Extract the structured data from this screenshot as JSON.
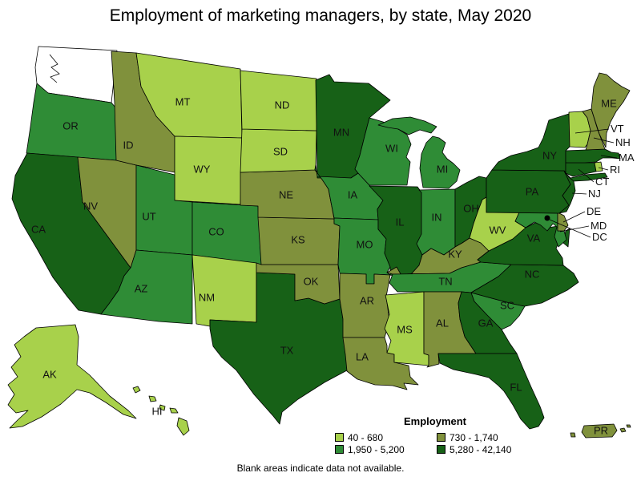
{
  "title": "Employment of marketing managers, by state, May 2020",
  "note": "Blank areas indicate data not available.",
  "legend": {
    "title": "Employment",
    "items": [
      {
        "label": "40 - 680",
        "color": "#a8d14b"
      },
      {
        "label": "730 - 1,740",
        "color": "#80913c"
      },
      {
        "label": "1,950 - 5,200",
        "color": "#2f8c36"
      },
      {
        "label": "5,280 - 42,140",
        "color": "#176117"
      }
    ]
  },
  "colors": {
    "no_data": "#ffffff",
    "border": "#000000",
    "dc_marker": "#000000",
    "background": "#ffffff"
  },
  "chart_data": {
    "type": "choropleth",
    "title": "Employment of marketing managers, by state, May 2020",
    "legend_title": "Employment",
    "bins": [
      "40 - 680",
      "730 - 1,740",
      "1,950 - 5,200",
      "5,280 - 42,140"
    ],
    "no_data_note": "Blank areas indicate data not available.",
    "states": [
      {
        "code": "WA",
        "bin": null,
        "no_data": true
      },
      {
        "code": "OR",
        "bin": 2
      },
      {
        "code": "CA",
        "bin": 3
      },
      {
        "code": "NV",
        "bin": 1
      },
      {
        "code": "ID",
        "bin": 1
      },
      {
        "code": "MT",
        "bin": 0
      },
      {
        "code": "WY",
        "bin": 0
      },
      {
        "code": "UT",
        "bin": 2
      },
      {
        "code": "CO",
        "bin": 2
      },
      {
        "code": "AZ",
        "bin": 2
      },
      {
        "code": "NM",
        "bin": 0
      },
      {
        "code": "TX",
        "bin": 3
      },
      {
        "code": "OK",
        "bin": 1
      },
      {
        "code": "KS",
        "bin": 1
      },
      {
        "code": "NE",
        "bin": 1
      },
      {
        "code": "SD",
        "bin": 0
      },
      {
        "code": "ND",
        "bin": 0
      },
      {
        "code": "MN",
        "bin": 3
      },
      {
        "code": "IA",
        "bin": 2
      },
      {
        "code": "MO",
        "bin": 2
      },
      {
        "code": "AR",
        "bin": 1
      },
      {
        "code": "LA",
        "bin": 1
      },
      {
        "code": "WI",
        "bin": 2
      },
      {
        "code": "IL",
        "bin": 3
      },
      {
        "code": "MI",
        "bin": 2
      },
      {
        "code": "IN",
        "bin": 2
      },
      {
        "code": "OH",
        "bin": 3
      },
      {
        "code": "KY",
        "bin": 1
      },
      {
        "code": "TN",
        "bin": 2
      },
      {
        "code": "MS",
        "bin": 0
      },
      {
        "code": "AL",
        "bin": 1
      },
      {
        "code": "GA",
        "bin": 3
      },
      {
        "code": "FL",
        "bin": 3
      },
      {
        "code": "SC",
        "bin": 2
      },
      {
        "code": "NC",
        "bin": 3
      },
      {
        "code": "VA",
        "bin": 3
      },
      {
        "code": "WV",
        "bin": 0
      },
      {
        "code": "MD",
        "bin": 2
      },
      {
        "code": "DE",
        "bin": 1
      },
      {
        "code": "PA",
        "bin": 3
      },
      {
        "code": "NY",
        "bin": 3
      },
      {
        "code": "NJ",
        "bin": 3
      },
      {
        "code": "CT",
        "bin": 3
      },
      {
        "code": "RI",
        "bin": 0
      },
      {
        "code": "MA",
        "bin": 3
      },
      {
        "code": "VT",
        "bin": 0
      },
      {
        "code": "NH",
        "bin": 1
      },
      {
        "code": "ME",
        "bin": 1
      },
      {
        "code": "AK",
        "bin": 0
      },
      {
        "code": "HI",
        "bin": 0
      },
      {
        "code": "PR",
        "bin": 1
      },
      {
        "code": "DC",
        "bin": null,
        "marker": "dot"
      }
    ]
  }
}
